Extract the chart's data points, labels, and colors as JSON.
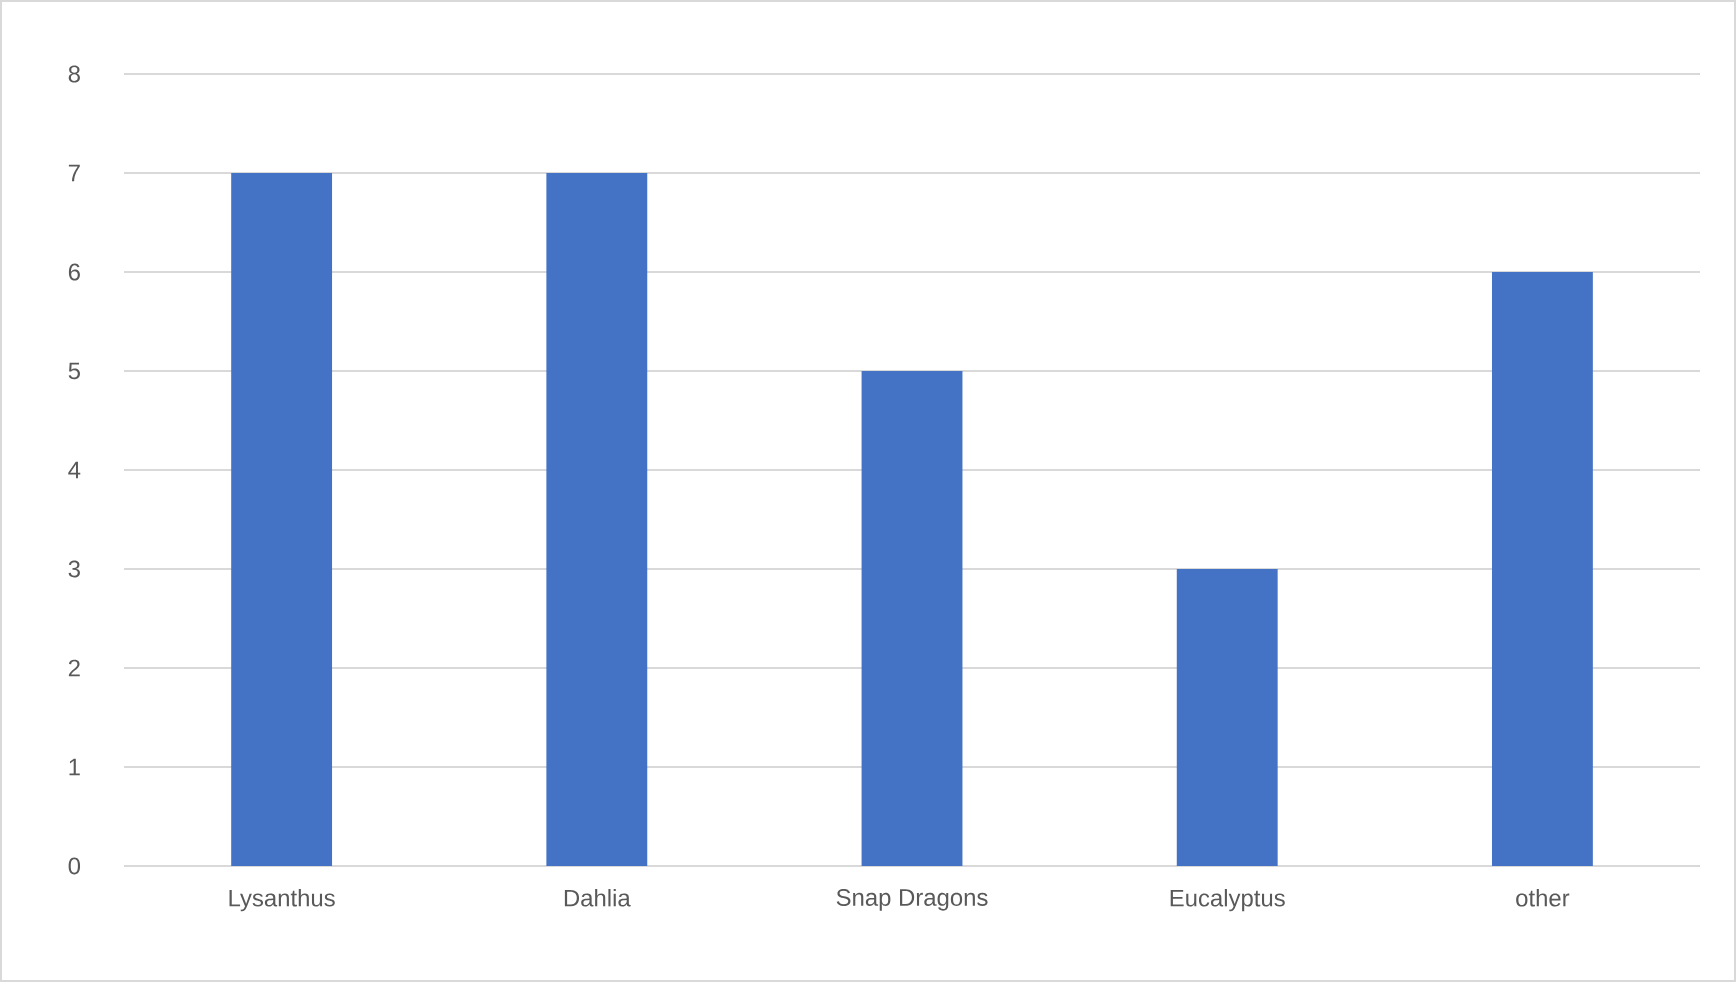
{
  "chart_data": {
    "type": "bar",
    "categories": [
      "Lysanthus",
      "Dahlia",
      "Snap Dragons",
      "Eucalyptus",
      "other"
    ],
    "values": [
      7,
      7,
      5,
      3,
      6
    ],
    "color": "#4472c4",
    "ylim": [
      0,
      8
    ],
    "yticks": [
      0,
      1,
      2,
      3,
      4,
      5,
      6,
      7,
      8
    ],
    "grid": "y"
  }
}
